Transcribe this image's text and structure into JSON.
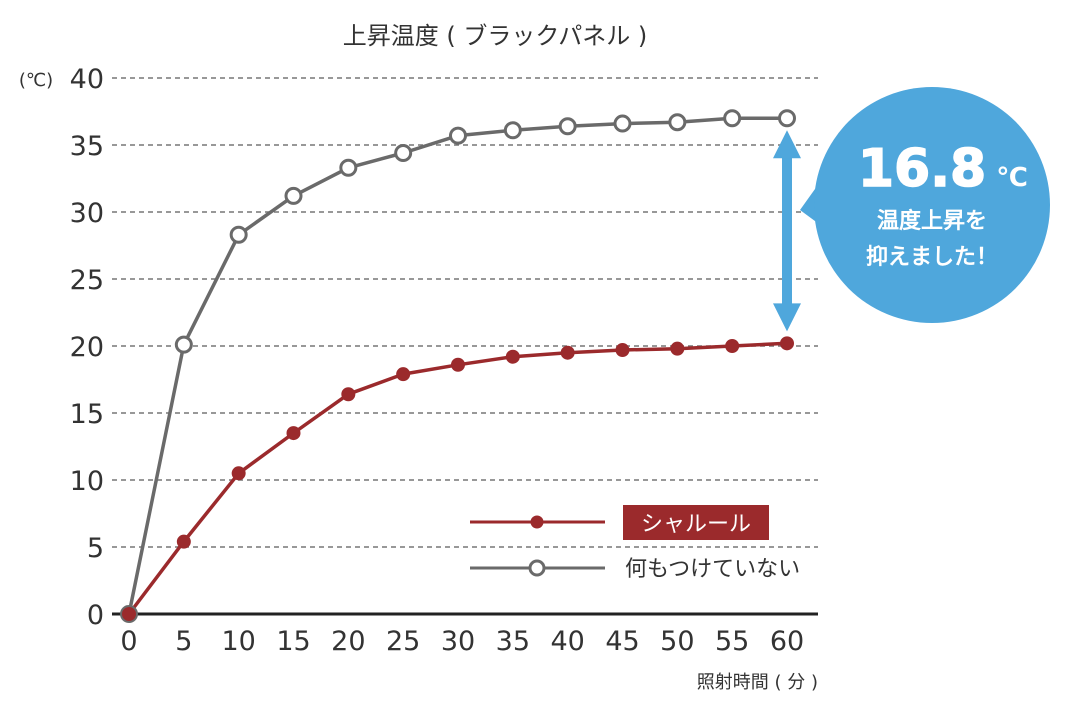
{
  "chart_data": {
    "type": "line",
    "title": "上昇温度 ( ブラックパネル )",
    "ylabel": "(℃)",
    "xlabel": "照射時間 ( 分 )",
    "x": [
      0,
      5,
      10,
      15,
      20,
      25,
      30,
      35,
      40,
      45,
      50,
      55,
      60
    ],
    "xticks": [
      "0",
      "5",
      "10",
      "15",
      "20",
      "25",
      "30",
      "35",
      "40",
      "45",
      "50",
      "55",
      "60"
    ],
    "yticks": [
      "0",
      "5",
      "10",
      "15",
      "20",
      "25",
      "30",
      "35",
      "40"
    ],
    "ylim": [
      0,
      40
    ],
    "xlim": [
      0,
      60
    ],
    "grid": true,
    "legend_position": "bottom-right",
    "series": [
      {
        "name": "シャルール",
        "color": "#9b2a2c",
        "marker": "filled-circle",
        "values": [
          0,
          5.4,
          10.5,
          13.5,
          16.4,
          17.9,
          18.6,
          19.2,
          19.5,
          19.7,
          19.8,
          20.0,
          20.2
        ]
      },
      {
        "name": "何もつけていない",
        "color": "#6a6a6a",
        "marker": "open-circle",
        "values": [
          0,
          20.1,
          28.3,
          31.2,
          33.3,
          34.4,
          35.7,
          36.1,
          36.4,
          36.6,
          36.7,
          37.0,
          37.0
        ]
      }
    ],
    "annotation": {
      "value": "16.8",
      "unit": "℃",
      "line1": "温度上昇を",
      "line2": "抑えました！",
      "color": "#4fa7dc",
      "arrow_from_y": 37.0,
      "arrow_to_y": 20.2,
      "arrow_x": 60
    }
  }
}
